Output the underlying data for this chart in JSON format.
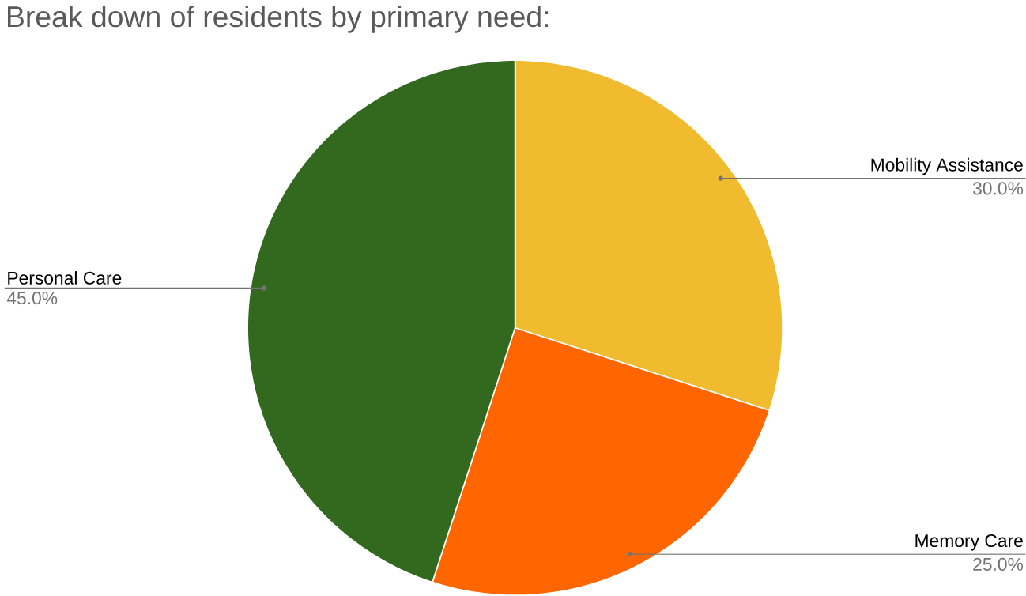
{
  "chart_data": {
    "type": "pie",
    "title": "Break down of residents by primary need:",
    "categories": [
      "Mobility Assistance",
      "Memory Care",
      "Personal Care"
    ],
    "values": [
      30,
      25,
      45
    ],
    "value_labels": [
      "30.0%",
      "25.0%",
      "45.0%"
    ],
    "colors": [
      "#f1bb2f",
      "#ff6600",
      "#33691e"
    ]
  }
}
